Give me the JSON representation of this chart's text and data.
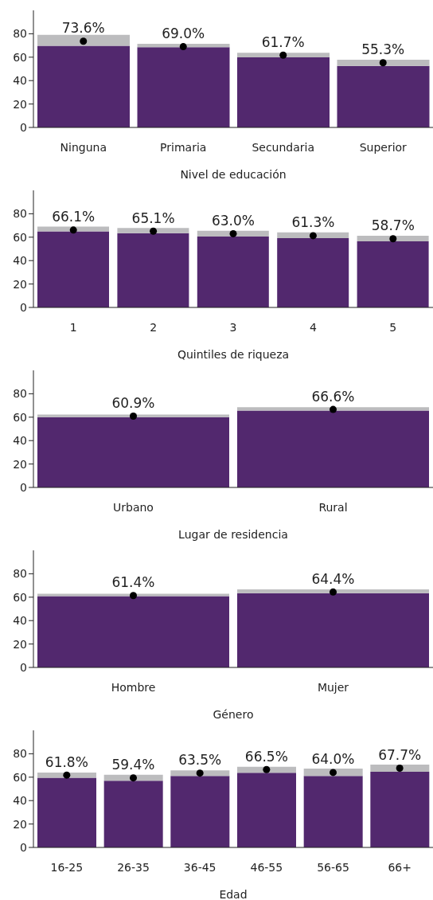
{
  "chart_data": [
    {
      "type": "bar",
      "xlabel": "Nivel de educación",
      "categories": [
        "Ninguna",
        "Primaria",
        "Secundaria",
        "Superior"
      ],
      "stacked": true,
      "ylim": [
        0,
        100
      ],
      "yticks": [
        0,
        20,
        40,
        60,
        80
      ],
      "grid": false,
      "legend": false,
      "series": [
        {
          "color": "#52286e",
          "values": [
            69.8,
            68.6,
            59.9,
            52.6
          ]
        },
        {
          "color": "#bcbcbe",
          "values": [
            9.3,
            2.9,
            3.8,
            5.3
          ]
        },
        {
          "type": "scatter",
          "color": "#000000",
          "marker": "circle",
          "x": [
            "Ninguna",
            "Primaria",
            "Secundaria",
            "Superior"
          ],
          "values": [
            73.6,
            69.0,
            61.7,
            55.3
          ],
          "value_labels": [
            "73.6%",
            "69.0%",
            "61.7%",
            "55.3%"
          ]
        }
      ]
    },
    {
      "type": "bar",
      "xlabel": "Quintiles de riqueza",
      "categories": [
        "1",
        "2",
        "3",
        "4",
        "5"
      ],
      "stacked": true,
      "ylim": [
        0,
        100
      ],
      "yticks": [
        0,
        20,
        40,
        60,
        80
      ],
      "grid": false,
      "legend": false,
      "series": [
        {
          "color": "#52286e",
          "values": [
            65.0,
            63.5,
            60.6,
            59.1,
            56.4
          ]
        },
        {
          "color": "#bcbcbe",
          "values": [
            4.1,
            4.4,
            4.9,
            5.1,
            4.9
          ]
        },
        {
          "type": "scatter",
          "color": "#000000",
          "marker": "circle",
          "x": [
            "1",
            "2",
            "3",
            "4",
            "5"
          ],
          "values": [
            66.1,
            65.1,
            63.0,
            61.3,
            58.7
          ],
          "value_labels": [
            "66.1%",
            "65.1%",
            "63.0%",
            "61.3%",
            "58.7%"
          ]
        }
      ]
    },
    {
      "type": "bar",
      "xlabel": "Lugar de residencia",
      "categories": [
        "Urbano",
        "Rural"
      ],
      "stacked": true,
      "ylim": [
        0,
        100
      ],
      "yticks": [
        0,
        20,
        40,
        60,
        80
      ],
      "grid": false,
      "legend": false,
      "series": [
        {
          "color": "#52286e",
          "values": [
            60.1,
            65.7
          ]
        },
        {
          "color": "#bcbcbe",
          "values": [
            2.2,
            2.9
          ]
        },
        {
          "type": "scatter",
          "color": "#000000",
          "marker": "circle",
          "x": [
            "Urbano",
            "Rural"
          ],
          "values": [
            60.9,
            66.6
          ],
          "value_labels": [
            "60.9%",
            "66.6%"
          ]
        }
      ]
    },
    {
      "type": "bar",
      "xlabel": "Género",
      "categories": [
        "Hombre",
        "Mujer"
      ],
      "stacked": true,
      "ylim": [
        0,
        100
      ],
      "yticks": [
        0,
        20,
        40,
        60,
        80
      ],
      "grid": false,
      "legend": false,
      "series": [
        {
          "color": "#52286e",
          "values": [
            60.8,
            63.5
          ]
        },
        {
          "color": "#bcbcbe",
          "values": [
            2.2,
            3.2
          ]
        },
        {
          "type": "scatter",
          "color": "#000000",
          "marker": "circle",
          "x": [
            "Hombre",
            "Mujer"
          ],
          "values": [
            61.4,
            64.4
          ],
          "value_labels": [
            "61.4%",
            "64.4%"
          ]
        }
      ]
    },
    {
      "type": "bar",
      "xlabel": "Edad",
      "categories": [
        "16-25",
        "26-35",
        "36-45",
        "46-55",
        "56-65",
        "66+"
      ],
      "stacked": true,
      "ylim": [
        0,
        100
      ],
      "yticks": [
        0,
        20,
        40,
        60,
        80
      ],
      "grid": false,
      "legend": false,
      "series": [
        {
          "color": "#52286e",
          "values": [
            59.6,
            56.9,
            61.1,
            63.7,
            61.1,
            64.7
          ]
        },
        {
          "color": "#bcbcbe",
          "values": [
            4.4,
            5.1,
            4.8,
            5.2,
            6.3,
            6.1
          ]
        },
        {
          "type": "scatter",
          "color": "#000000",
          "marker": "circle",
          "x": [
            "16-25",
            "26-35",
            "36-45",
            "46-55",
            "56-65",
            "66+"
          ],
          "values": [
            61.8,
            59.4,
            63.5,
            66.5,
            64.0,
            67.7
          ],
          "value_labels": [
            "61.8%",
            "59.4%",
            "63.5%",
            "66.5%",
            "64.0%",
            "67.7%"
          ]
        }
      ]
    }
  ]
}
